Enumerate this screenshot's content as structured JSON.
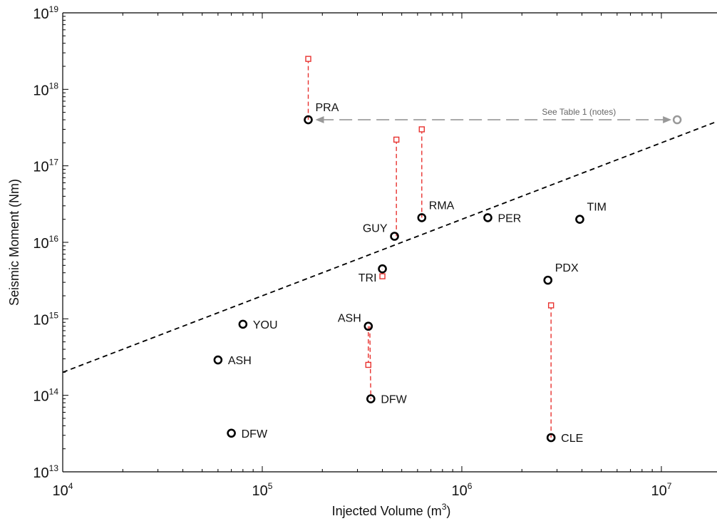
{
  "chart_data": {
    "type": "scatter",
    "title": "",
    "xlabel": "Injected Volume (m",
    "xlabel_sup": "3",
    "xlabel_end": ")",
    "ylabel": "Seismic Moment (Nm)",
    "xscale": "log",
    "yscale": "log",
    "xlim": [
      10000,
      19000000
    ],
    "ylim": [
      10000000000000.0,
      1e+19
    ],
    "x_ticks": [
      {
        "base": "10",
        "exp": "4",
        "value": 10000
      },
      {
        "base": "10",
        "exp": "5",
        "value": 100000
      },
      {
        "base": "10",
        "exp": "6",
        "value": 1000000
      },
      {
        "base": "10",
        "exp": "7",
        "value": 10000000
      }
    ],
    "y_ticks": [
      {
        "base": "10",
        "exp": "13",
        "value": 10000000000000.0
      },
      {
        "base": "10",
        "exp": "14",
        "value": 100000000000000.0
      },
      {
        "base": "10",
        "exp": "15",
        "value": 1000000000000000.0
      },
      {
        "base": "10",
        "exp": "16",
        "value": 1e+16
      },
      {
        "base": "10",
        "exp": "17",
        "value": 1e+17
      },
      {
        "base": "10",
        "exp": "18",
        "value": 1e+18
      },
      {
        "base": "10",
        "exp": "19",
        "value": 1e+19
      }
    ],
    "grid": false,
    "colors": {
      "observed": "#000000",
      "predicted": "#e8322f",
      "trend": "#000000",
      "note": "#999999"
    },
    "points": [
      {
        "label": "PRA",
        "x": 170000,
        "y": 4e+17,
        "label_pos": "upper-right"
      },
      {
        "label": "GUY",
        "x": 460000,
        "y": 1.2e+16,
        "label_pos": "upper-left"
      },
      {
        "label": "RMA",
        "x": 630000,
        "y": 2.1e+16,
        "label_pos": "upper-right"
      },
      {
        "label": "PER",
        "x": 1350000,
        "y": 2.1e+16,
        "label_pos": "right"
      },
      {
        "label": "TIM",
        "x": 3900000,
        "y": 2e+16,
        "label_pos": "upper-right"
      },
      {
        "label": "TRI",
        "x": 400000,
        "y": 4500000000000000.0,
        "label_pos": "lower-left"
      },
      {
        "label": "PDX",
        "x": 2700000,
        "y": 3200000000000000.0,
        "label_pos": "upper-right"
      },
      {
        "label": "YOU",
        "x": 80000,
        "y": 850000000000000.0,
        "label_pos": "right"
      },
      {
        "label": "ASH",
        "x": 340000,
        "y": 800000000000000.0,
        "label_pos": "upper-left"
      },
      {
        "label": "ASH",
        "x": 60000,
        "y": 290000000000000.0,
        "label_pos": "right"
      },
      {
        "label": "DFW",
        "x": 350000,
        "y": 90000000000000.0,
        "label_pos": "right"
      },
      {
        "label": "DFW",
        "x": 70000,
        "y": 32000000000000.0,
        "label_pos": "right"
      },
      {
        "label": "CLE",
        "x": 2800000,
        "y": 28000000000000.0,
        "label_pos": "right"
      }
    ],
    "predicted": [
      {
        "x": 170000,
        "y": 2.5e+18,
        "y_from": 4e+17
      },
      {
        "x": 470000,
        "y": 2.2e+17,
        "y_from": 1.2e+16
      },
      {
        "x": 630000,
        "y": 3e+17,
        "y_from": 2.1e+16
      },
      {
        "x": 400000,
        "y": 3600000000000000.0,
        "y_from": 4500000000000000.0
      },
      {
        "x": 340000,
        "y": 250000000000000.0,
        "y_from": 800000000000000.0
      },
      {
        "x": 2800000,
        "y": 1500000000000000.0,
        "y_from": 28000000000000.0
      }
    ],
    "extra_markers": [
      {
        "x": 3400000,
        "y_from": 800000000000000.0,
        "y_to": 90000000000000.0,
        "x_from": 340000,
        "x_to": 350000
      }
    ],
    "note_point": {
      "x": 12000000,
      "y": 4e+17
    },
    "note_arrow": {
      "from_x": 12000000,
      "to_x": 170000,
      "y": 4e+17,
      "text": "See Table 1 (notes)"
    },
    "trend_line": {
      "x": [
        10000,
        19000000
      ],
      "y": [
        200000000000000.0,
        3.8e+17
      ]
    }
  }
}
